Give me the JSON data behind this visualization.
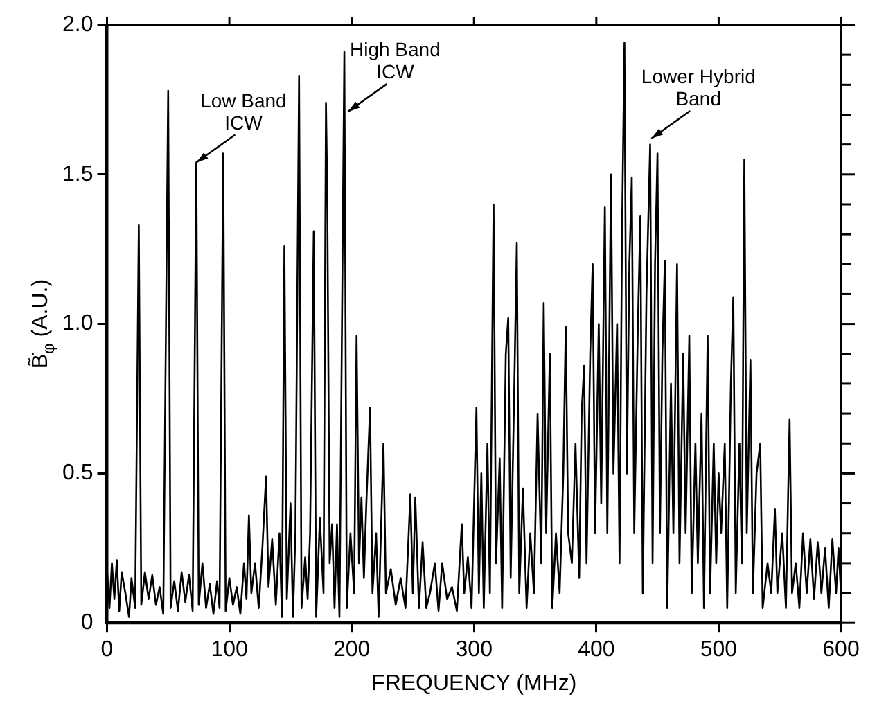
{
  "chart_data": {
    "type": "line",
    "xlabel": "FREQUENCY (MHz)",
    "ylabel": "B̃̇$_{φ}$ (A.U.)",
    "xlim": [
      0,
      600
    ],
    "xticks": [
      0,
      100,
      200,
      300,
      400,
      500,
      600
    ],
    "ylim": [
      0,
      2
    ],
    "yticks": [
      0,
      {
        "value": 0.1,
        "label": null
      },
      {
        "value": 0.2,
        "label": null
      },
      {
        "value": 0.3,
        "label": null
      },
      {
        "value": 0.4,
        "label": null
      },
      0.5,
      {
        "value": 0.6,
        "label": null
      },
      {
        "value": 0.7,
        "label": null
      },
      {
        "value": 0.8,
        "label": null
      },
      {
        "value": 0.9,
        "label": null
      },
      {
        "value": 1,
        "label": "1.0"
      },
      {
        "value": 1.1,
        "label": null
      },
      {
        "value": 1.2,
        "label": null
      },
      {
        "value": 1.3,
        "label": null
      },
      {
        "value": 1.4,
        "label": null
      },
      1.5,
      {
        "value": 1.6,
        "label": null
      },
      {
        "value": 1.7,
        "label": null
      },
      {
        "value": 1.8,
        "label": null
      },
      {
        "value": 1.9,
        "label": null
      },
      {
        "value": 2,
        "label": "2.0"
      }
    ],
    "grid": false,
    "legend": false,
    "annotations": [
      {
        "text": "Low Band\nICW",
        "x": 73,
        "y": 1.54
      },
      {
        "text": "High Band\nICW",
        "x": 197,
        "y": 1.71
      },
      {
        "text": "Lower Hybrid\nBand",
        "x": 445,
        "y": 1.62
      }
    ],
    "series": [
      {
        "color": "#000000",
        "x": [
          0,
          2,
          4,
          6,
          8,
          10,
          12,
          15,
          18,
          20,
          23,
          26,
          28,
          31,
          34,
          37,
          40,
          43,
          46,
          50,
          52,
          55,
          58,
          61,
          64,
          67,
          70,
          73,
          75,
          78,
          81,
          84,
          87,
          90,
          92,
          95,
          97,
          100,
          103,
          106,
          109,
          112,
          114,
          116,
          118,
          121,
          124,
          127,
          130,
          132,
          135,
          138,
          141,
          143,
          145,
          147,
          150,
          152,
          154,
          157,
          159,
          162,
          164,
          166,
          169,
          171,
          174,
          177,
          179,
          180,
          182,
          184,
          186,
          188,
          190,
          194,
          196,
          199,
          202,
          204,
          206,
          208,
          210,
          212,
          215,
          217,
          220,
          222,
          226,
          228,
          232,
          236,
          240,
          244,
          248,
          250,
          252,
          255,
          258,
          261,
          264,
          268,
          271,
          274,
          278,
          282,
          286,
          290,
          292,
          295,
          298,
          302,
          304,
          306,
          308,
          311,
          313,
          316,
          318,
          321,
          323,
          326,
          328,
          330,
          333,
          335,
          337,
          340,
          343,
          346,
          349,
          352,
          355,
          357,
          359,
          362,
          364,
          367,
          370,
          373,
          375,
          377,
          380,
          383,
          386,
          388,
          390,
          392,
          395,
          397,
          399,
          402,
          404,
          407,
          409,
          412,
          414,
          417,
          419,
          421,
          423,
          425,
          427,
          429,
          431,
          434,
          436,
          438,
          441,
          444,
          446,
          448,
          450,
          452,
          454,
          456,
          458,
          461,
          463,
          466,
          468,
          471,
          473,
          476,
          478,
          481,
          483,
          486,
          488,
          491,
          493,
          496,
          498,
          500,
          502,
          505,
          507,
          510,
          512,
          514,
          517,
          519,
          521,
          523,
          526,
          528,
          531,
          534,
          536,
          540,
          543,
          546,
          548,
          552,
          555,
          558,
          560,
          563,
          566,
          569,
          572,
          575,
          578,
          581,
          584,
          587,
          590,
          593,
          596,
          598,
          600
        ],
        "values": [
          0.18,
          0.05,
          0.2,
          0.08,
          0.21,
          0.04,
          0.17,
          0.1,
          0.02,
          0.15,
          0.05,
          1.33,
          0.06,
          0.17,
          0.08,
          0.16,
          0.06,
          0.12,
          0.03,
          1.78,
          0.05,
          0.14,
          0.04,
          0.17,
          0.07,
          0.16,
          0.04,
          1.54,
          0.06,
          0.2,
          0.05,
          0.13,
          0.03,
          0.14,
          0.05,
          1.57,
          0.04,
          0.15,
          0.06,
          0.12,
          0.03,
          0.2,
          0.08,
          0.36,
          0.1,
          0.2,
          0.05,
          0.25,
          0.49,
          0.12,
          0.28,
          0.06,
          0.3,
          0.02,
          1.26,
          0.08,
          0.4,
          0.02,
          0.3,
          1.83,
          0.05,
          0.22,
          0.08,
          0.3,
          1.31,
          0.02,
          0.35,
          0.1,
          1.74,
          1.45,
          0.2,
          0.33,
          0.05,
          0.33,
          0.02,
          1.91,
          0.05,
          0.3,
          0.1,
          0.96,
          0.2,
          0.42,
          0.15,
          0.4,
          0.72,
          0.1,
          0.3,
          0.02,
          0.6,
          0.1,
          0.18,
          0.06,
          0.15,
          0.05,
          0.43,
          0.1,
          0.42,
          0.05,
          0.27,
          0.05,
          0.1,
          0.2,
          0.04,
          0.2,
          0.08,
          0.12,
          0.04,
          0.33,
          0.1,
          0.22,
          0.05,
          0.72,
          0.1,
          0.5,
          0.05,
          0.6,
          0.1,
          1.4,
          0.2,
          0.55,
          0.05,
          0.9,
          1.02,
          0.15,
          0.8,
          1.27,
          0.1,
          0.45,
          0.05,
          0.3,
          0.1,
          0.7,
          0.2,
          1.07,
          0.3,
          0.9,
          0.05,
          0.3,
          0.1,
          0.5,
          0.99,
          0.3,
          0.2,
          0.6,
          0.15,
          0.7,
          0.86,
          0.2,
          0.9,
          1.2,
          0.3,
          1,
          0.4,
          1.39,
          0.3,
          1.5,
          0.5,
          1,
          0.2,
          1.3,
          1.94,
          0.5,
          1.2,
          1.49,
          0.3,
          1,
          1.36,
          0.1,
          1.1,
          1.6,
          0.2,
          1.2,
          1.57,
          0.3,
          0.9,
          1.21,
          0.05,
          0.8,
          0.3,
          1.2,
          0.2,
          0.9,
          0.3,
          0.96,
          0.1,
          0.6,
          0.2,
          0.7,
          0.05,
          0.96,
          0.1,
          0.6,
          0.2,
          0.5,
          0.3,
          0.6,
          0.05,
          0.8,
          1.09,
          0.1,
          0.6,
          0.2,
          1.55,
          0.3,
          0.88,
          0.1,
          0.5,
          0.6,
          0.05,
          0.2,
          0.1,
          0.38,
          0.1,
          0.3,
          0.05,
          0.68,
          0.1,
          0.2,
          0.05,
          0.3,
          0.1,
          0.28,
          0.08,
          0.27,
          0.1,
          0.25,
          0.05,
          0.28,
          0.1,
          0.25,
          0.1
        ]
      }
    ]
  }
}
